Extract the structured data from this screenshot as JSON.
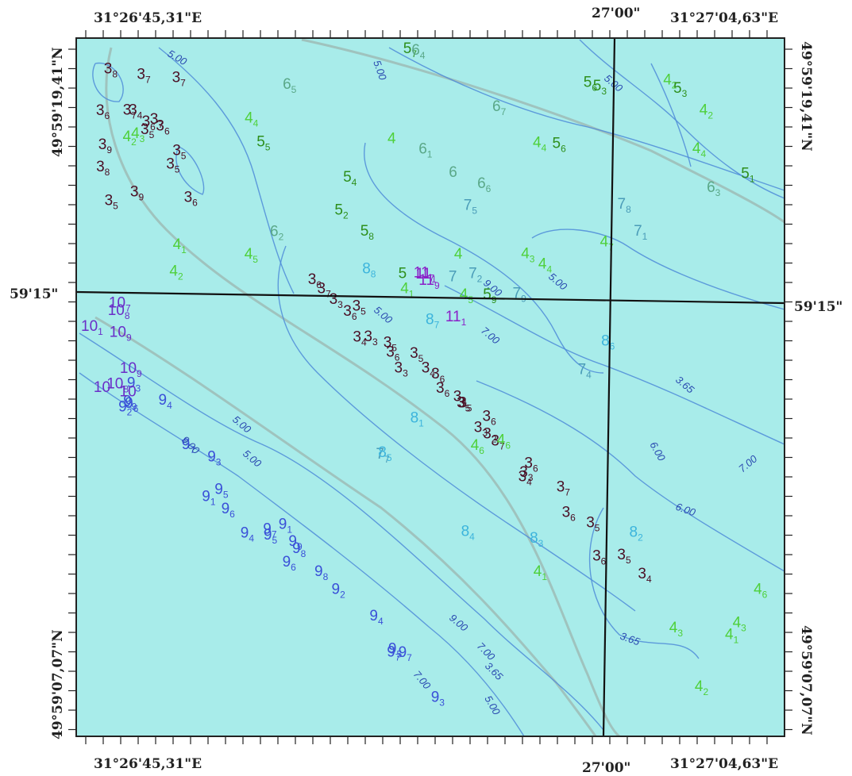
{
  "map": {
    "background_color": "#a8ecea",
    "frame_labels": {
      "top_left": "31°26'45,31\"E",
      "top_mid": "27'00\"",
      "top_right": "31°27'04,63\"E",
      "bottom_left": "31°26'45,31\"E",
      "bottom_mid": "27'00\"",
      "bottom_right": "31°27'04,63\"E",
      "left_mid": "59'15\"",
      "right_mid": "59'15\"",
      "left_top": "49°59'19,41\"N",
      "left_bottom": "49°59'07,07\"N",
      "right_top": "49°59'19,41\"N",
      "right_bottom": "49°59'07,07\"N"
    },
    "contour_labels": [
      "5.00",
      "5.00",
      "5.00",
      "5.00",
      "5.00",
      "5.00",
      "5.00",
      "6.00",
      "6.00",
      "7.00",
      "7.00",
      "7.00",
      "7.00",
      "9.00",
      "9.00",
      "9.00",
      "3.65",
      "3.65",
      "3.65",
      "5.00"
    ],
    "colors": {
      "depth_3": "#4a0e24",
      "depth_4": "#4ed03a",
      "depth_4_pale": "#6fbf8a",
      "depth_5": "#2e8f1c",
      "depth_6": "#5aa888",
      "depth_7": "#4a9cb8",
      "depth_8": "#3cb4dc",
      "depth_9": "#3a50d8",
      "depth_10": "#6a2ec8",
      "depth_11": "#8a20c8",
      "contour": "#4f8cd8",
      "grid_line": "#111111",
      "road": "#9aa8a0"
    },
    "soundings": [
      {
        "d": "3",
        "s": "6"
      },
      {
        "d": "3",
        "s": "7"
      },
      {
        "d": "3",
        "s": "6"
      },
      {
        "d": "3",
        "s": "4"
      },
      {
        "d": "3",
        "s": "5"
      },
      {
        "d": "3",
        "s": "3"
      },
      {
        "d": "3",
        "s": "4"
      },
      {
        "d": "3",
        "s": "6"
      },
      {
        "d": "3",
        "s": "5"
      },
      {
        "d": "3",
        "s": "3"
      },
      {
        "d": "3",
        "s": "2"
      },
      {
        "d": "3",
        "s": "3"
      },
      {
        "d": "3",
        "s": "4"
      },
      {
        "d": "3",
        "s": "7"
      },
      {
        "d": "3",
        "s": "6"
      },
      {
        "d": "3",
        "s": "5"
      },
      {
        "d": "3",
        "s": "6"
      },
      {
        "d": "3",
        "s": "5"
      },
      {
        "d": "3",
        "s": "4"
      },
      {
        "d": "3",
        "s": "3"
      },
      {
        "d": "3",
        "s": "5"
      },
      {
        "d": "3",
        "s": "3"
      },
      {
        "d": "3",
        "s": "6"
      },
      {
        "d": "3",
        "s": "5"
      },
      {
        "d": "3",
        "s": "6"
      },
      {
        "d": "3",
        "s": "4"
      },
      {
        "d": "3",
        "s": "5"
      },
      {
        "d": "3",
        "s": "6"
      },
      {
        "d": "3",
        "s": "7"
      },
      {
        "d": "3",
        "s": "6"
      },
      {
        "d": "3",
        "s": "5"
      },
      {
        "d": "3",
        "s": "6"
      },
      {
        "d": "3",
        "s": "7"
      },
      {
        "d": "3",
        "s": "6"
      },
      {
        "d": "3",
        "s": "5"
      },
      {
        "d": "3",
        "s": "4"
      },
      {
        "d": "3",
        "s": "5"
      },
      {
        "d": "3",
        "s": "6"
      },
      {
        "d": "3",
        "s": "5"
      },
      {
        "d": "3",
        "s": "6"
      },
      {
        "d": "4",
        "s": "1"
      },
      {
        "d": "4",
        "s": "2"
      },
      {
        "d": "4",
        "s": "3"
      },
      {
        "d": "4",
        "s": "4"
      },
      {
        "d": "4",
        "s": "5"
      },
      {
        "d": "4",
        "s": "6"
      },
      {
        "d": "4",
        "s": ""
      },
      {
        "d": "4",
        "s": "2"
      },
      {
        "d": "4",
        "s": "1"
      },
      {
        "d": "4",
        "s": "3"
      },
      {
        "d": "4",
        "s": "4"
      },
      {
        "d": "4",
        "s": "6"
      },
      {
        "d": "3",
        "s": "7"
      },
      {
        "d": "3",
        "s": "8"
      },
      {
        "d": "3",
        "s": "9"
      },
      {
        "d": "3",
        "s": "7"
      },
      {
        "d": "3",
        "s": "8"
      },
      {
        "d": "3",
        "s": "9"
      },
      {
        "d": "4",
        "s": ""
      },
      {
        "d": "3",
        "s": "7"
      },
      {
        "d": "4",
        "s": "2"
      },
      {
        "d": "4",
        "s": "3"
      },
      {
        "d": "4",
        "s": "1"
      },
      {
        "d": "4",
        "s": "4"
      },
      {
        "d": "4",
        "s": "2"
      },
      {
        "d": "4",
        "s": "5"
      },
      {
        "d": "4",
        "s": "3"
      },
      {
        "d": "4",
        "s": "6"
      },
      {
        "d": "4",
        "s": "4"
      },
      {
        "d": "4",
        "s": "7"
      },
      {
        "d": "4",
        "s": "1"
      },
      {
        "d": "4",
        "s": "2"
      },
      {
        "d": "5",
        "s": "9"
      },
      {
        "d": "5",
        "s": "6"
      },
      {
        "d": "5",
        "s": "3"
      },
      {
        "d": "5",
        "s": "4"
      },
      {
        "d": "5",
        "s": "7"
      },
      {
        "d": "5",
        "s": "1"
      },
      {
        "d": "5",
        "s": "5"
      },
      {
        "d": "5",
        "s": "2"
      },
      {
        "d": "5",
        "s": "8"
      },
      {
        "d": "5",
        "s": ""
      },
      {
        "d": "5",
        "s": "6"
      },
      {
        "d": "5",
        "s": "3"
      },
      {
        "d": "6",
        "s": "1"
      },
      {
        "d": "6",
        "s": "3"
      },
      {
        "d": "6",
        "s": "5"
      },
      {
        "d": "6",
        "s": "7"
      },
      {
        "d": "6",
        "s": ""
      },
      {
        "d": "6",
        "s": "4"
      },
      {
        "d": "6",
        "s": "2"
      },
      {
        "d": "6",
        "s": "6"
      },
      {
        "d": "7",
        "s": "1"
      },
      {
        "d": "7",
        "s": "2"
      },
      {
        "d": "7",
        "s": "5"
      },
      {
        "d": "7",
        "s": "7"
      },
      {
        "d": "7",
        "s": "8"
      },
      {
        "d": "7",
        "s": "9"
      },
      {
        "d": "7",
        "s": ""
      },
      {
        "d": "7",
        "s": "4"
      },
      {
        "d": "8",
        "s": "1"
      },
      {
        "d": "8",
        "s": "2"
      },
      {
        "d": "8",
        "s": "4"
      },
      {
        "d": "8",
        "s": "6"
      },
      {
        "d": "8",
        "s": "8"
      },
      {
        "d": "8",
        "s": "5"
      },
      {
        "d": "8",
        "s": "3"
      },
      {
        "d": "8",
        "s": "7"
      },
      {
        "d": "9",
        "s": "1"
      },
      {
        "d": "9",
        "s": "2"
      },
      {
        "d": "9",
        "s": "3"
      },
      {
        "d": "9",
        "s": "4"
      },
      {
        "d": "9",
        "s": "5"
      },
      {
        "d": "9",
        "s": "6"
      },
      {
        "d": "9",
        "s": "7"
      },
      {
        "d": "9",
        "s": "8"
      },
      {
        "d": "9",
        "s": "9"
      },
      {
        "d": "9",
        "s": "3"
      },
      {
        "d": "9",
        "s": "1"
      },
      {
        "d": "9",
        "s": "4"
      },
      {
        "d": "9",
        "s": "7"
      },
      {
        "d": "9",
        "s": "6"
      },
      {
        "d": "9",
        "s": "5"
      },
      {
        "d": "9",
        "s": "3"
      },
      {
        "d": "9",
        "s": "7"
      },
      {
        "d": "9",
        "s": "9"
      },
      {
        "d": "9",
        "s": "8"
      },
      {
        "d": "9",
        "s": "2"
      },
      {
        "d": "9",
        "s": "4"
      },
      {
        "d": "9",
        "s": "6"
      },
      {
        "d": "9",
        "s": "5"
      },
      {
        "d": "9",
        "s": "7"
      },
      {
        "d": "10",
        "s": ""
      },
      {
        "d": "10",
        "s": "9"
      },
      {
        "d": "10",
        "s": "8"
      },
      {
        "d": "10",
        "s": "1"
      },
      {
        "d": "10",
        "s": "7"
      },
      {
        "d": "10",
        "s": "9"
      },
      {
        "d": "10",
        "s": ""
      },
      {
        "d": "10",
        "s": "8"
      },
      {
        "d": "11",
        "s": "1"
      },
      {
        "d": "11",
        "s": "7"
      },
      {
        "d": "11",
        "s": "9"
      },
      {
        "d": "11",
        "s": "1"
      }
    ]
  }
}
